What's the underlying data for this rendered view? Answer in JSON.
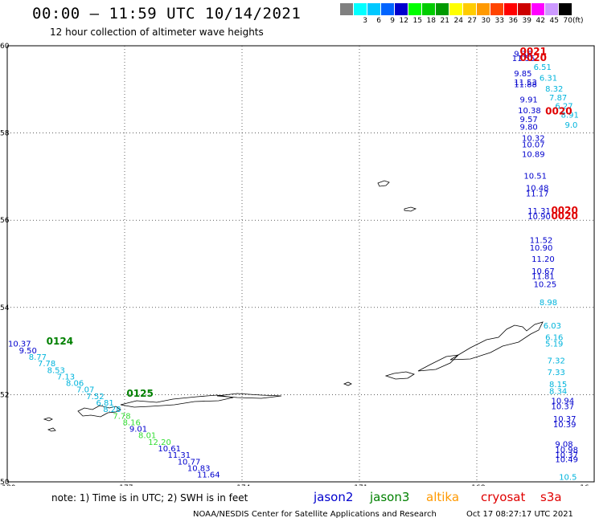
{
  "header": {
    "title": "00:00 – 11:59 UTC 10/14/2021",
    "subtitle": "12 hour collection of altimeter wave heights"
  },
  "scale": {
    "unit": "(ft)",
    "swatches": [
      {
        "label": "",
        "color": "#808080"
      },
      {
        "label": "3",
        "color": "#00ffff"
      },
      {
        "label": "6",
        "color": "#00c8ff"
      },
      {
        "label": "9",
        "color": "#0064ff"
      },
      {
        "label": "12",
        "color": "#0000cd"
      },
      {
        "label": "15",
        "color": "#00ff00"
      },
      {
        "label": "18",
        "color": "#00cc00"
      },
      {
        "label": "21",
        "color": "#009900"
      },
      {
        "label": "24",
        "color": "#ffff00"
      },
      {
        "label": "27",
        "color": "#ffcc00"
      },
      {
        "label": "30",
        "color": "#ff9900"
      },
      {
        "label": "33",
        "color": "#ff4400"
      },
      {
        "label": "36",
        "color": "#ff0000"
      },
      {
        "label": "39",
        "color": "#cc0000"
      },
      {
        "label": "42",
        "color": "#ff00ff"
      },
      {
        "label": "45",
        "color": "#cc99ff"
      },
      {
        "label": "70",
        "color": "#000000"
      }
    ]
  },
  "map": {
    "lat_labels": [
      "60",
      "58",
      "56",
      "54",
      "52",
      "50"
    ],
    "lon_labels": [
      "-180",
      "-177",
      "-174",
      "-171",
      "-168",
      "-16"
    ],
    "colors": {
      "jason2": "#0000cd",
      "jason3": "#008000",
      "cryosat": "#e00000",
      "light": "#00b4dc",
      "green": "#33dd33"
    },
    "swh_points": [
      {
        "t": "10.37",
        "c": "#0000cd",
        "lat": 53.1,
        "lon": -179.98
      },
      {
        "t": "9.50",
        "c": "#0000cd",
        "lat": 52.95,
        "lon": -179.7
      },
      {
        "t": "8.77",
        "c": "#00b4dc",
        "lat": 52.8,
        "lon": -179.45
      },
      {
        "t": "7.78",
        "c": "#00b4dc",
        "lat": 52.65,
        "lon": -179.22
      },
      {
        "t": "8.53",
        "c": "#00b4dc",
        "lat": 52.5,
        "lon": -178.98
      },
      {
        "t": "7.13",
        "c": "#00b4dc",
        "lat": 52.35,
        "lon": -178.73
      },
      {
        "t": "8.06",
        "c": "#00b4dc",
        "lat": 52.2,
        "lon": -178.5
      },
      {
        "t": "7.07",
        "c": "#00b4dc",
        "lat": 52.05,
        "lon": -178.23
      },
      {
        "t": "7.52",
        "c": "#00b4dc",
        "lat": 51.9,
        "lon": -177.98
      },
      {
        "t": "6.81",
        "c": "#00b4dc",
        "lat": 51.75,
        "lon": -177.73
      },
      {
        "t": "8.28",
        "c": "#00b4dc",
        "lat": 51.6,
        "lon": -177.55
      },
      {
        "t": "7.78",
        "c": "#33dd33",
        "lat": 51.45,
        "lon": -177.3
      },
      {
        "t": "8.16",
        "c": "#33dd33",
        "lat": 51.3,
        "lon": -177.05
      },
      {
        "t": "9.01",
        "c": "#0000cd",
        "lat": 51.15,
        "lon": -176.88
      },
      {
        "t": "8.01",
        "c": "#33dd33",
        "lat": 51.0,
        "lon": -176.65
      },
      {
        "t": "12.20",
        "c": "#33dd33",
        "lat": 50.85,
        "lon": -176.4
      },
      {
        "t": "10.61",
        "c": "#0000cd",
        "lat": 50.7,
        "lon": -176.15
      },
      {
        "t": "11.31",
        "c": "#0000cd",
        "lat": 50.55,
        "lon": -175.9
      },
      {
        "t": "10.77",
        "c": "#0000cd",
        "lat": 50.4,
        "lon": -175.65
      },
      {
        "t": "10.83",
        "c": "#0000cd",
        "lat": 50.25,
        "lon": -175.4
      },
      {
        "t": "11.64",
        "c": "#0000cd",
        "lat": 50.1,
        "lon": -175.15
      },
      {
        "t": "9.36",
        "c": "#0000cd",
        "lat": 59.75,
        "lon": -167.05
      },
      {
        "t": "11.55",
        "c": "#0000cd",
        "lat": 59.65,
        "lon": -167.1
      },
      {
        "t": "6.51",
        "c": "#00b4dc",
        "lat": 59.45,
        "lon": -166.55
      },
      {
        "t": "9.85",
        "c": "#0000cd",
        "lat": 59.3,
        "lon": -167.05
      },
      {
        "t": "6.31",
        "c": "#00b4dc",
        "lat": 59.2,
        "lon": -166.4
      },
      {
        "t": "11.53",
        "c": "#0000cd",
        "lat": 59.1,
        "lon": -167.05
      },
      {
        "t": "11.88",
        "c": "#0000cd",
        "lat": 59.05,
        "lon": -167.05
      },
      {
        "t": "8.32",
        "c": "#00b4dc",
        "lat": 58.95,
        "lon": -166.25
      },
      {
        "t": "7.87",
        "c": "#00b4dc",
        "lat": 58.75,
        "lon": -166.15
      },
      {
        "t": "9.91",
        "c": "#0000cd",
        "lat": 58.7,
        "lon": -166.9
      },
      {
        "t": "6.27",
        "c": "#00b4dc",
        "lat": 58.55,
        "lon": -166.0
      },
      {
        "t": "10.38",
        "c": "#0000cd",
        "lat": 58.45,
        "lon": -166.95
      },
      {
        "t": "8.91",
        "c": "#00b4dc",
        "lat": 58.35,
        "lon": -165.85
      },
      {
        "t": "9.57",
        "c": "#0000cd",
        "lat": 58.25,
        "lon": -166.9
      },
      {
        "t": "9.80",
        "c": "#0000cd",
        "lat": 58.08,
        "lon": -166.9
      },
      {
        "t": "9.0",
        "c": "#00b4dc",
        "lat": 58.12,
        "lon": -165.75
      },
      {
        "t": "10.32",
        "c": "#0000cd",
        "lat": 57.82,
        "lon": -166.85
      },
      {
        "t": "10.07",
        "c": "#0000cd",
        "lat": 57.67,
        "lon": -166.85
      },
      {
        "t": "10.89",
        "c": "#0000cd",
        "lat": 57.45,
        "lon": -166.85
      },
      {
        "t": "10.51",
        "c": "#0000cd",
        "lat": 56.95,
        "lon": -166.8
      },
      {
        "t": "10.48",
        "c": "#0000cd",
        "lat": 56.68,
        "lon": -166.75
      },
      {
        "t": "11.17",
        "c": "#0000cd",
        "lat": 56.55,
        "lon": -166.75
      },
      {
        "t": "11.31",
        "c": "#0000cd",
        "lat": 56.15,
        "lon": -166.7
      },
      {
        "t": "10.90",
        "c": "#0000cd",
        "lat": 56.02,
        "lon": -166.7
      },
      {
        "t": "11.52",
        "c": "#0000cd",
        "lat": 55.48,
        "lon": -166.65
      },
      {
        "t": "10.90",
        "c": "#0000cd",
        "lat": 55.3,
        "lon": -166.65
      },
      {
        "t": "11.20",
        "c": "#0000cd",
        "lat": 55.05,
        "lon": -166.6
      },
      {
        "t": "10.67",
        "c": "#0000cd",
        "lat": 54.77,
        "lon": -166.6
      },
      {
        "t": "11.81",
        "c": "#0000cd",
        "lat": 54.65,
        "lon": -166.6
      },
      {
        "t": "10.25",
        "c": "#0000cd",
        "lat": 54.47,
        "lon": -166.55
      },
      {
        "t": "8.98",
        "c": "#00b4dc",
        "lat": 54.05,
        "lon": -166.4
      },
      {
        "t": "6.03",
        "c": "#00b4dc",
        "lat": 53.52,
        "lon": -166.3
      },
      {
        "t": "6.16",
        "c": "#00b4dc",
        "lat": 53.25,
        "lon": -166.25
      },
      {
        "t": "5.19",
        "c": "#00b4dc",
        "lat": 53.1,
        "lon": -166.25
      },
      {
        "t": "7.32",
        "c": "#00b4dc",
        "lat": 52.72,
        "lon": -166.2
      },
      {
        "t": "7.33",
        "c": "#00b4dc",
        "lat": 52.45,
        "lon": -166.2
      },
      {
        "t": "8.15",
        "c": "#00b4dc",
        "lat": 52.17,
        "lon": -166.15
      },
      {
        "t": "8.34",
        "c": "#00b4dc",
        "lat": 52.02,
        "lon": -166.15
      },
      {
        "t": "10.94",
        "c": "#0000cd",
        "lat": 51.8,
        "lon": -166.1
      },
      {
        "t": "10.37",
        "c": "#0000cd",
        "lat": 51.67,
        "lon": -166.1
      },
      {
        "t": "10.37",
        "c": "#0000cd",
        "lat": 51.38,
        "lon": -166.05
      },
      {
        "t": "10.39",
        "c": "#0000cd",
        "lat": 51.25,
        "lon": -166.05
      },
      {
        "t": "9.08",
        "c": "#0000cd",
        "lat": 50.8,
        "lon": -166.0
      },
      {
        "t": "10.98",
        "c": "#0000cd",
        "lat": 50.67,
        "lon": -166.0
      },
      {
        "t": "10.37",
        "c": "#0000cd",
        "lat": 50.55,
        "lon": -166.0
      },
      {
        "t": "10.49",
        "c": "#0000cd",
        "lat": 50.45,
        "lon": -166.0
      },
      {
        "t": "10.5",
        "c": "#00b4dc",
        "lat": 50.05,
        "lon": -165.9
      }
    ],
    "pass_labels": [
      {
        "t": "0124",
        "c": "#008000",
        "lat": 53.15,
        "lon": -179.0
      },
      {
        "t": "0125",
        "c": "#008000",
        "lat": 51.95,
        "lon": -176.95
      },
      {
        "t": "0021",
        "c": "#e00000",
        "lat": 59.8,
        "lon": -166.9
      },
      {
        "t": "0020",
        "c": "#e00000",
        "lat": 59.65,
        "lon": -166.9
      },
      {
        "t": "0020",
        "c": "#e00000",
        "lat": 58.43,
        "lon": -166.25
      },
      {
        "t": "0020",
        "c": "#e00000",
        "lat": 56.15,
        "lon": -166.1
      },
      {
        "t": "0020",
        "c": "#e00000",
        "lat": 56.02,
        "lon": -166.1
      }
    ]
  },
  "footer": {
    "note": "note: 1) Time is in UTC; 2) SWH is in feet",
    "legend": [
      {
        "label": "jason2",
        "color": "#0000cd"
      },
      {
        "label": "jason3",
        "color": "#008000"
      },
      {
        "label": "altika",
        "color": "#ff9900"
      },
      {
        "label": "cryosat",
        "color": "#e00000"
      },
      {
        "label": "s3a",
        "color": "#e00000"
      }
    ],
    "credit": "NOAA/NESDIS Center for Satellite Applications and Research",
    "generated": "Oct 17 08:27:17 UTC 2021"
  }
}
